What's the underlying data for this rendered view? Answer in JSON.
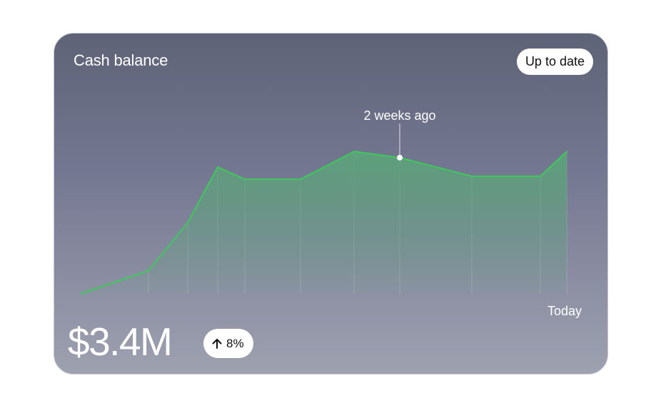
{
  "card": {
    "title": "Cash balance",
    "status": "Up to date",
    "balance": "$3.4M",
    "change": {
      "direction_icon": "arrow-up-icon",
      "value": "8%"
    }
  },
  "colors": {
    "line": "#3ec95a",
    "area_fill": "#5aa878",
    "pill_background": "#ffffff",
    "text": "#ffffff"
  },
  "chart_data": {
    "type": "area",
    "x_labels": [
      "",
      "",
      "",
      "",
      "",
      "",
      "",
      "",
      "",
      "",
      "Today"
    ],
    "values": [
      0,
      15,
      46,
      82,
      74,
      74,
      92,
      88,
      76,
      76,
      92
    ],
    "ylim": [
      0,
      100
    ],
    "highlight": {
      "index": 7,
      "label": "2 weeks ago"
    },
    "grid": "vertical guide lines at each point"
  }
}
